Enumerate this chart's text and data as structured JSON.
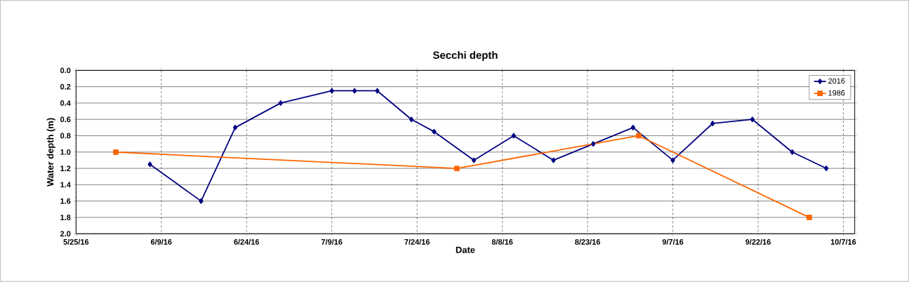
{
  "chart_data": {
    "type": "line",
    "title": "Secchi depth",
    "xlabel": "Date",
    "ylabel": "Water depth (m)",
    "xlim": [
      "2016-05-25",
      "2016-10-09"
    ],
    "xticks": [
      {
        "value": "2016-05-25",
        "label": "5/25/16"
      },
      {
        "value": "2016-06-09",
        "label": "6/9/16"
      },
      {
        "value": "2016-06-24",
        "label": "6/24/16"
      },
      {
        "value": "2016-07-09",
        "label": "7/9/16"
      },
      {
        "value": "2016-07-24",
        "label": "7/24/16"
      },
      {
        "value": "2016-08-08",
        "label": "8/8/16"
      },
      {
        "value": "2016-08-23",
        "label": "8/23/16"
      },
      {
        "value": "2016-09-07",
        "label": "9/7/16"
      },
      {
        "value": "2016-09-22",
        "label": "9/22/16"
      },
      {
        "value": "2016-10-07",
        "label": "10/7/16"
      }
    ],
    "ylim": [
      2.0,
      0.0
    ],
    "yticks": [
      {
        "value": 0,
        "label": "0.0"
      },
      {
        "value": 0.2,
        "label": "0.2"
      },
      {
        "value": 0.4,
        "label": "0.4"
      },
      {
        "value": 0.6,
        "label": "0.6"
      },
      {
        "value": 0.8,
        "label": "0.8"
      },
      {
        "value": 1.0,
        "label": "1.0"
      },
      {
        "value": 1.2,
        "label": "1.2"
      },
      {
        "value": 1.4,
        "label": "1.4"
      },
      {
        "value": 1.6,
        "label": "1.6"
      },
      {
        "value": 1.8,
        "label": "1.8"
      },
      {
        "value": 2.0,
        "label": "2.0"
      }
    ],
    "grid": true,
    "legend": "top right",
    "series": [
      {
        "name": "2016",
        "color": "#000080",
        "marker": "diamond",
        "x": [
          "2016-06-07",
          "2016-06-16",
          "2016-06-22",
          "2016-06-30",
          "2016-07-09",
          "2016-07-13",
          "2016-07-17",
          "2016-07-23",
          "2016-07-27",
          "2016-08-03",
          "2016-08-10",
          "2016-08-17",
          "2016-08-24",
          "2016-08-31",
          "2016-09-07",
          "2016-09-14",
          "2016-09-21",
          "2016-09-28",
          "2016-10-04"
        ],
        "values": [
          1.15,
          1.6,
          0.7,
          0.4,
          0.25,
          0.25,
          0.25,
          0.6,
          0.75,
          1.1,
          0.8,
          1.1,
          0.9,
          0.7,
          1.1,
          0.65,
          0.6,
          1.0,
          1.2
        ]
      },
      {
        "name": "1986",
        "color": "#ff6600",
        "marker": "square",
        "x": [
          "2016-06-01",
          "2016-07-31",
          "2016-09-01",
          "2016-10-01"
        ],
        "values": [
          1.0,
          1.2,
          0.8,
          1.8
        ]
      }
    ]
  }
}
